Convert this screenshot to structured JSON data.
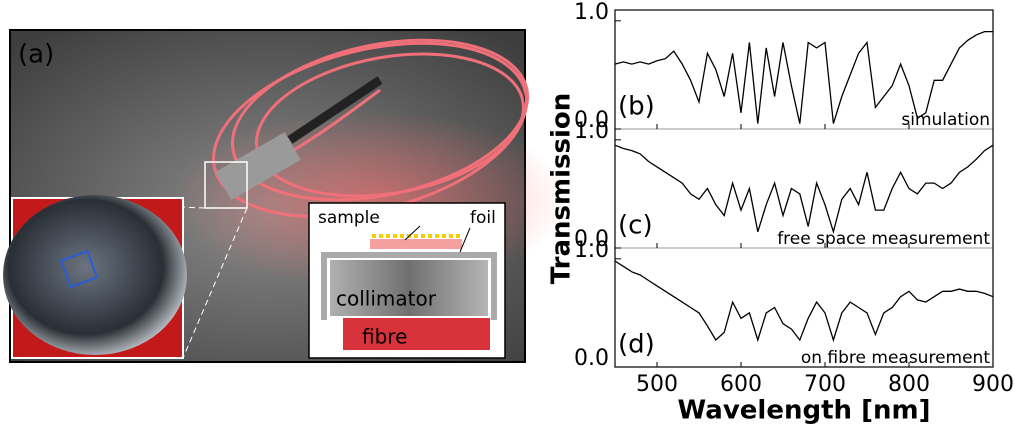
{
  "photo": {
    "panel_label": "(a)",
    "schematic": {
      "sample": "sample",
      "foil": "foil",
      "collimator": "collimator",
      "fibre": "fibre"
    }
  },
  "chart_data": [
    {
      "type": "line",
      "panel_label": "(b)",
      "annotation": "simulation",
      "x": [
        450,
        460,
        470,
        480,
        490,
        500,
        510,
        520,
        530,
        540,
        550,
        560,
        570,
        580,
        590,
        600,
        610,
        620,
        630,
        640,
        650,
        660,
        670,
        680,
        690,
        700,
        710,
        720,
        730,
        740,
        750,
        760,
        770,
        780,
        790,
        800,
        810,
        820,
        830,
        840,
        850,
        860,
        870,
        880,
        890,
        900
      ],
      "series": [
        {
          "color": "#000000",
          "values": [
            0.6,
            0.62,
            0.6,
            0.62,
            0.6,
            0.63,
            0.65,
            0.72,
            0.6,
            0.45,
            0.25,
            0.7,
            0.55,
            0.3,
            0.7,
            0.15,
            0.8,
            0.05,
            0.75,
            0.3,
            0.8,
            0.4,
            0.05,
            0.8,
            0.75,
            0.8,
            0.05,
            0.3,
            0.5,
            0.7,
            0.8,
            0.2,
            0.3,
            0.4,
            0.6,
            0.4,
            0.1,
            0.15,
            0.45,
            0.45,
            0.6,
            0.75,
            0.82,
            0.87,
            0.9,
            0.9
          ]
        }
      ],
      "xlim": [
        450,
        900
      ],
      "xticks": [
        500,
        600,
        700,
        800,
        900
      ],
      "ylim": [
        0,
        1.1
      ],
      "yticks": [
        {
          "value": 0,
          "label": "0.0"
        },
        {
          "value": 1,
          "label": "1.0"
        }
      ]
    },
    {
      "type": "line",
      "panel_label": "(c)",
      "annotation": "free space measurement",
      "y_label": "Transmission",
      "x": [
        450,
        460,
        470,
        480,
        490,
        500,
        510,
        520,
        530,
        540,
        550,
        560,
        570,
        580,
        590,
        600,
        610,
        620,
        630,
        640,
        650,
        660,
        670,
        680,
        690,
        700,
        710,
        720,
        730,
        740,
        750,
        760,
        770,
        780,
        790,
        800,
        810,
        820,
        830,
        840,
        850,
        860,
        870,
        880,
        890,
        900
      ],
      "series": [
        {
          "color": "#000000",
          "values": [
            0.95,
            0.92,
            0.9,
            0.87,
            0.8,
            0.75,
            0.7,
            0.65,
            0.6,
            0.5,
            0.45,
            0.55,
            0.4,
            0.3,
            0.6,
            0.35,
            0.55,
            0.15,
            0.4,
            0.6,
            0.3,
            0.55,
            0.5,
            0.2,
            0.6,
            0.4,
            0.15,
            0.45,
            0.55,
            0.4,
            0.7,
            0.35,
            0.35,
            0.55,
            0.7,
            0.55,
            0.5,
            0.6,
            0.6,
            0.55,
            0.6,
            0.7,
            0.75,
            0.82,
            0.9,
            0.95
          ]
        }
      ],
      "xlim": [
        450,
        900
      ],
      "xticks": [
        500,
        600,
        700,
        800,
        900
      ],
      "ylim": [
        0,
        1.1
      ],
      "yticks": [
        {
          "value": 0,
          "label": "0.0"
        },
        {
          "value": 1,
          "label": "1.0"
        }
      ]
    },
    {
      "type": "line",
      "panel_label": "(d)",
      "annotation": "on fibre measurement",
      "x_label": "Wavelength [nm]",
      "x": [
        450,
        460,
        470,
        480,
        490,
        500,
        510,
        520,
        530,
        540,
        550,
        560,
        570,
        580,
        590,
        600,
        610,
        620,
        630,
        640,
        650,
        660,
        670,
        680,
        690,
        700,
        710,
        720,
        730,
        740,
        750,
        760,
        770,
        780,
        790,
        800,
        810,
        820,
        830,
        840,
        850,
        860,
        870,
        880,
        890,
        900
      ],
      "series": [
        {
          "color": "#000000",
          "values": [
            0.98,
            0.93,
            0.88,
            0.85,
            0.8,
            0.75,
            0.7,
            0.65,
            0.6,
            0.55,
            0.5,
            0.38,
            0.25,
            0.32,
            0.6,
            0.45,
            0.5,
            0.25,
            0.5,
            0.55,
            0.4,
            0.35,
            0.25,
            0.45,
            0.6,
            0.5,
            0.25,
            0.5,
            0.6,
            0.55,
            0.5,
            0.3,
            0.5,
            0.55,
            0.65,
            0.7,
            0.62,
            0.6,
            0.65,
            0.7,
            0.7,
            0.72,
            0.7,
            0.7,
            0.68,
            0.65
          ]
        }
      ],
      "xlim": [
        450,
        900
      ],
      "xticks": [
        500,
        600,
        700,
        800,
        900
      ],
      "ylim": [
        0,
        1.1
      ],
      "yticks": [
        {
          "value": 0,
          "label": "0.0"
        },
        {
          "value": 1,
          "label": "1.0"
        }
      ]
    }
  ]
}
